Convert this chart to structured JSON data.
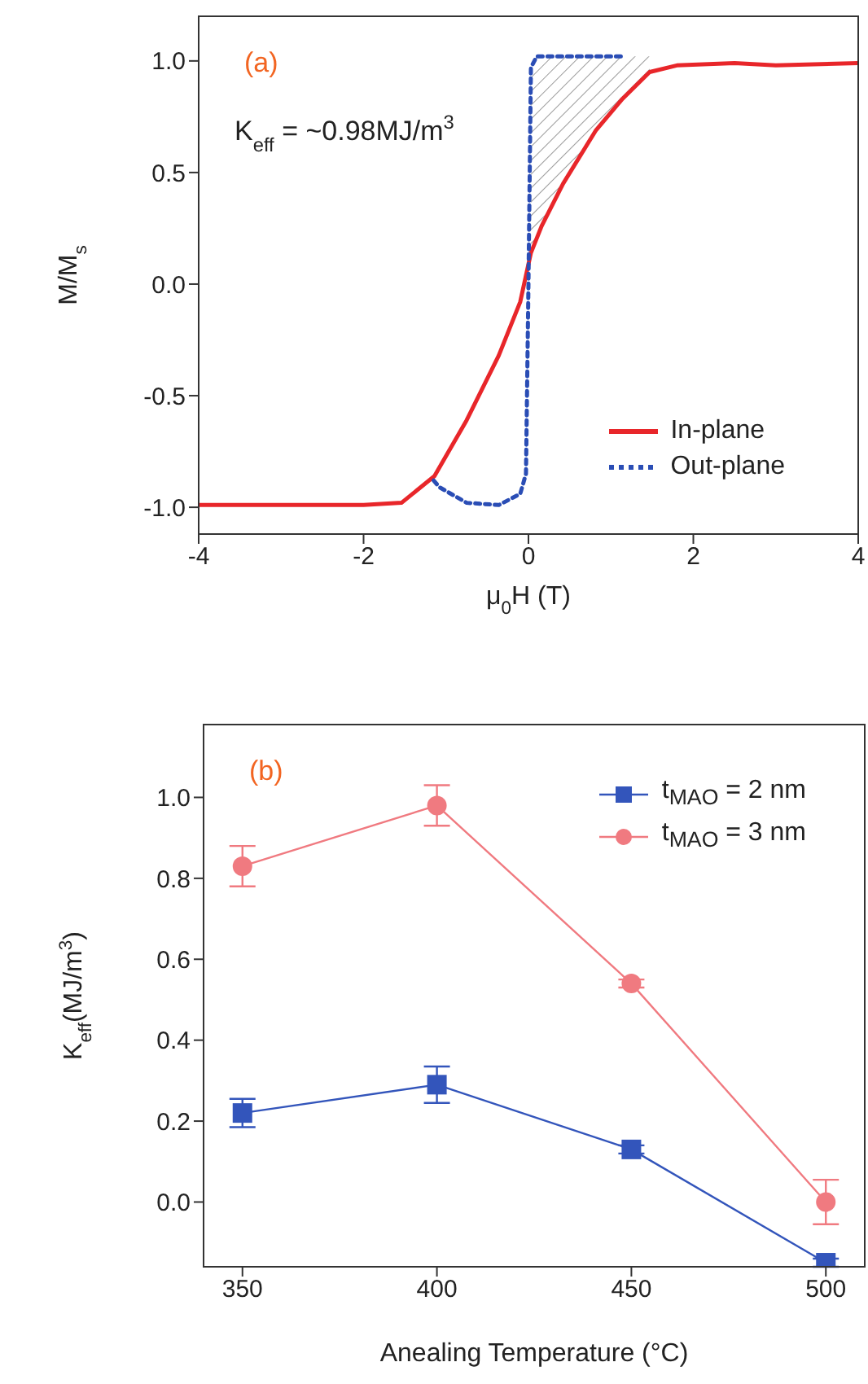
{
  "chart_data": [
    {
      "type": "line",
      "xlabel": "μ$_{0}$H (T)",
      "ylabel": "M/M$_{s}$",
      "annotations": [
        "(a)",
        "K$_{eff}$ = ~0.98MJ/m$^{3}$"
      ],
      "xlim": [
        -4,
        4
      ],
      "ylim": [
        -1.12,
        1.2
      ],
      "xticks": [
        -4,
        -2,
        0,
        2,
        4
      ],
      "yticks": [
        {
          "value": -1,
          "label": "-1.0"
        },
        -0.5,
        {
          "value": 0,
          "label": "0.0"
        },
        0.5,
        {
          "value": 1,
          "label": "1.0"
        }
      ],
      "legend": "bottom right",
      "marker": "none",
      "series": [
        {
          "name": "In-plane",
          "color": "#e8262a",
          "line_style": "solid",
          "x": [
            -4,
            -3,
            -2,
            -1.54,
            -1.14,
            -0.75,
            -0.36,
            -0.1,
            0.03,
            0.16,
            0.42,
            0.82,
            1.14,
            1.47,
            1.8,
            2.5,
            3,
            4
          ],
          "values": [
            -0.99,
            -0.99,
            -0.99,
            -0.98,
            -0.86,
            -0.61,
            -0.32,
            -0.08,
            0.14,
            0.26,
            0.45,
            0.69,
            0.83,
            0.95,
            0.98,
            0.99,
            0.98,
            0.99
          ]
        },
        {
          "name": "Out-plane",
          "color": "#2a4db5",
          "line_style": "dotted",
          "x": [
            -1.15,
            -1.08,
            -0.75,
            -0.36,
            -0.1,
            -0.03,
            0,
            0.03,
            0.1,
            0.56,
            1.14
          ],
          "values": [
            -0.88,
            -0.91,
            -0.98,
            -0.99,
            -0.94,
            -0.85,
            0,
            0.97,
            1.02,
            1.02,
            1.02
          ]
        }
      ]
    },
    {
      "type": "line",
      "xlabel": "Anealing Temperature (°C)",
      "ylabel": "K$_{eff}$(MJ/m$^{3}$)",
      "annotations": [
        "(b)"
      ],
      "xlim": [
        340,
        510
      ],
      "ylim": [
        -0.16,
        1.18
      ],
      "xticks": [
        350,
        400,
        450,
        500
      ],
      "yticks": [
        {
          "value": 0,
          "label": "0.0"
        },
        {
          "value": 0.2,
          "label": "0.2"
        },
        {
          "value": 0.4,
          "label": "0.4"
        },
        {
          "value": 0.6,
          "label": "0.6"
        },
        {
          "value": 0.8,
          "label": "0.8"
        },
        {
          "value": 1,
          "label": "1.0"
        }
      ],
      "legend": "top right",
      "series": [
        {
          "name": "t$_{MAO}$ = 2 nm",
          "color": "#3355bb",
          "marker": "square",
          "x": [
            350,
            400,
            450,
            500
          ],
          "values": [
            0.22,
            0.29,
            0.13,
            -0.15
          ],
          "errors": [
            0.035,
            0.045,
            0.01,
            0.01
          ]
        },
        {
          "name": "t$_{MAO}$ = 3 nm",
          "color": "#f07a80",
          "marker": "circle",
          "x": [
            350,
            400,
            450,
            500
          ],
          "values": [
            0.83,
            0.98,
            0.54,
            0.0
          ],
          "errors": [
            0.05,
            0.05,
            0.01,
            0.055
          ]
        }
      ]
    }
  ]
}
